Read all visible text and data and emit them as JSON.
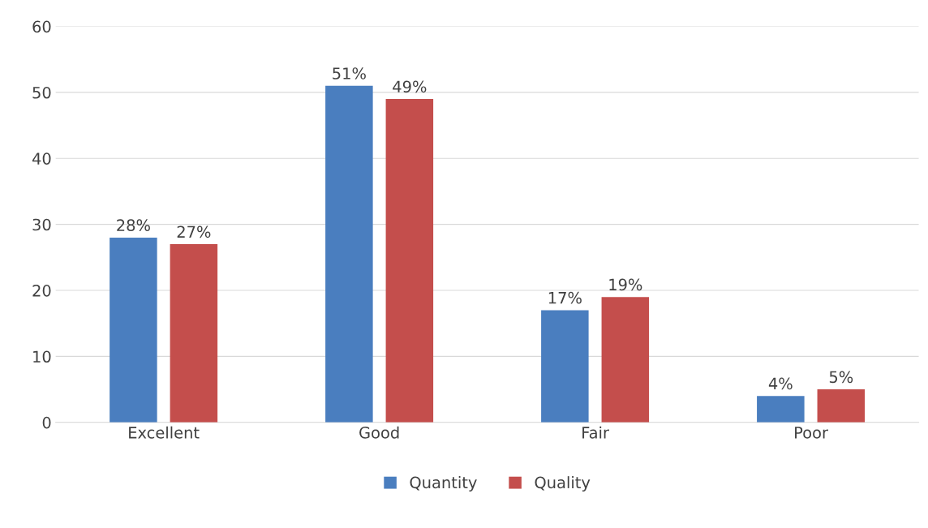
{
  "chart_data": {
    "type": "bar",
    "categories": [
      "Excellent",
      "Good",
      "Fair",
      "Poor"
    ],
    "series": [
      {
        "name": "Quantity",
        "color": "#4a7ebf",
        "values": [
          28,
          51,
          17,
          4
        ],
        "value_labels": [
          "28%",
          "51%",
          "17%",
          "4%"
        ]
      },
      {
        "name": "Quality",
        "color": "#c44e4c",
        "values": [
          27,
          49,
          19,
          5
        ],
        "value_labels": [
          "27%",
          "49%",
          "19%",
          "5%"
        ]
      }
    ],
    "ylim": [
      0,
      60
    ],
    "yticks": [
      0,
      10,
      20,
      30,
      40,
      50,
      60
    ],
    "grid": "y",
    "legend": "bottom"
  }
}
